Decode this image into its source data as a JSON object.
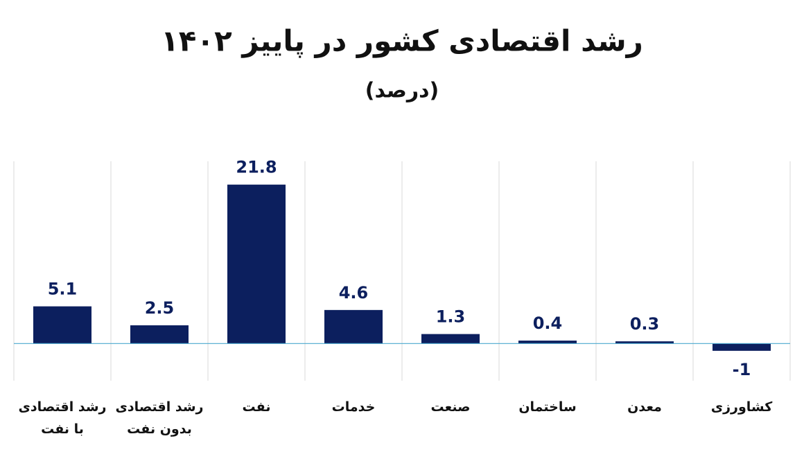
{
  "chart_data": {
    "type": "bar",
    "title": "رشد اقتصادی کشور در پاییز ۱۴۰۲",
    "subtitle": "(درصد)",
    "categories": [
      "رشد اقتصادی با نفت",
      "رشد اقتصادی بدون نفت",
      "نفت",
      "خدمات",
      "صنعت",
      "ساختمان",
      "معدن",
      "کشاورزی"
    ],
    "values": [
      5.1,
      2.5,
      21.8,
      4.6,
      1.3,
      0.4,
      0.3,
      -1
    ],
    "color": "#0c1f5e",
    "ylim": [
      -5.1,
      25
    ]
  }
}
